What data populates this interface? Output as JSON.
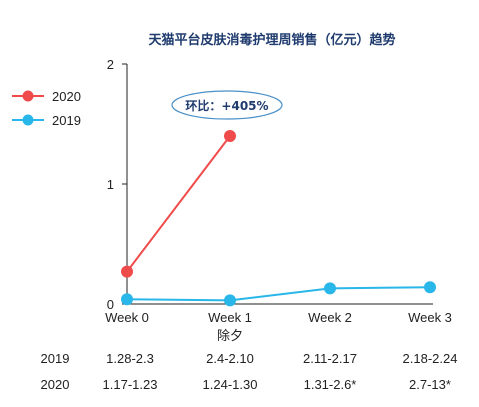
{
  "chart_data": {
    "type": "line",
    "title": "天猫平台皮肤消毒护理周销售（亿元）趋势",
    "categories": [
      "Week 0",
      "Week 1",
      "Week 2",
      "Week 3"
    ],
    "category_sublabels": [
      "",
      "除夕",
      "",
      ""
    ],
    "ylim": [
      0,
      2
    ],
    "yticks": [
      "0",
      "1",
      "2"
    ],
    "legend_position": "left",
    "series": [
      {
        "name": "2020",
        "color": "#f04b4b",
        "values": [
          0.27,
          1.4,
          null,
          null
        ]
      },
      {
        "name": "2019",
        "color": "#29b6e8",
        "values": [
          0.04,
          0.03,
          0.13,
          0.14
        ]
      }
    ],
    "annotation": "环比：+405%",
    "date_table": {
      "rows": [
        {
          "label": "2019",
          "cells": [
            "1.28-2.3",
            "2.4-2.10",
            "2.11-2.17",
            "2.18-2.24"
          ]
        },
        {
          "label": "2020",
          "cells": [
            "1.17-1.23",
            "1.24-1.30",
            "1.31-2.6*",
            "2.7-13*"
          ]
        }
      ]
    }
  }
}
